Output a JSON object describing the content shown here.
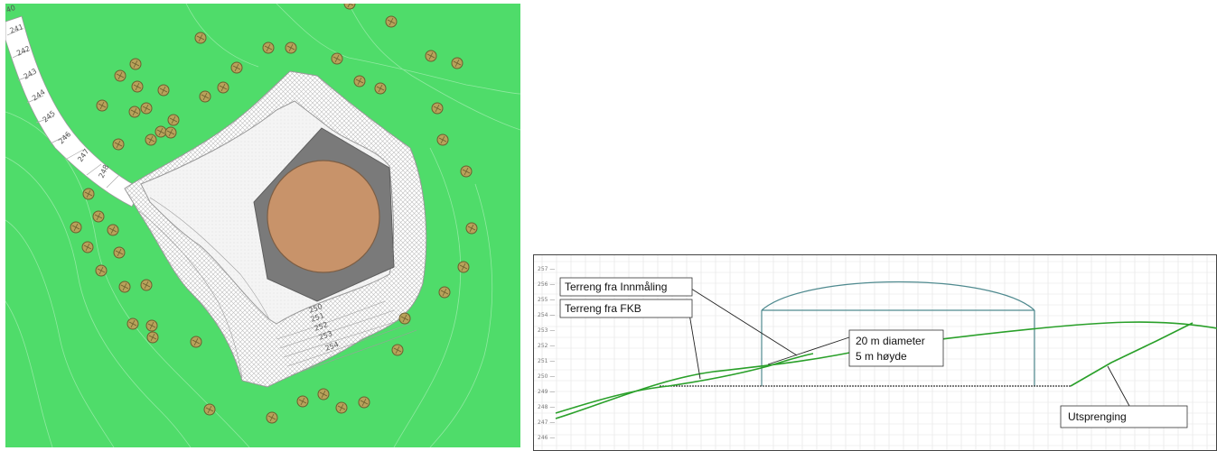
{
  "colors": {
    "grass": "#4fdc6a",
    "tank": "#c8936a",
    "rock_shoulder": "#7a7a7a",
    "pad": "#f2f2f2",
    "slope_hatch": "#cfcfcf",
    "tree": "#b8a25a",
    "profile_line": "#2aa02a",
    "tank_outline": "#4f8a8f"
  },
  "site_plan": {
    "road_labels": [
      "40",
      "241",
      "242",
      "243",
      "244",
      "245",
      "246",
      "247",
      "248"
    ],
    "slope_labels": [
      "250",
      "251",
      "252",
      "253",
      "254"
    ]
  },
  "section": {
    "y_ticks": [
      "257",
      "256",
      "255",
      "254",
      "253",
      "252",
      "251",
      "250",
      "249",
      "248",
      "247",
      "246"
    ],
    "callouts": {
      "innmaling": "Terreng fra Innmåling",
      "fkb": "Terreng fra FKB",
      "tank_line1": "20 m diameter",
      "tank_line2": "5 m høyde",
      "utsprenging": "Utsprenging"
    }
  }
}
